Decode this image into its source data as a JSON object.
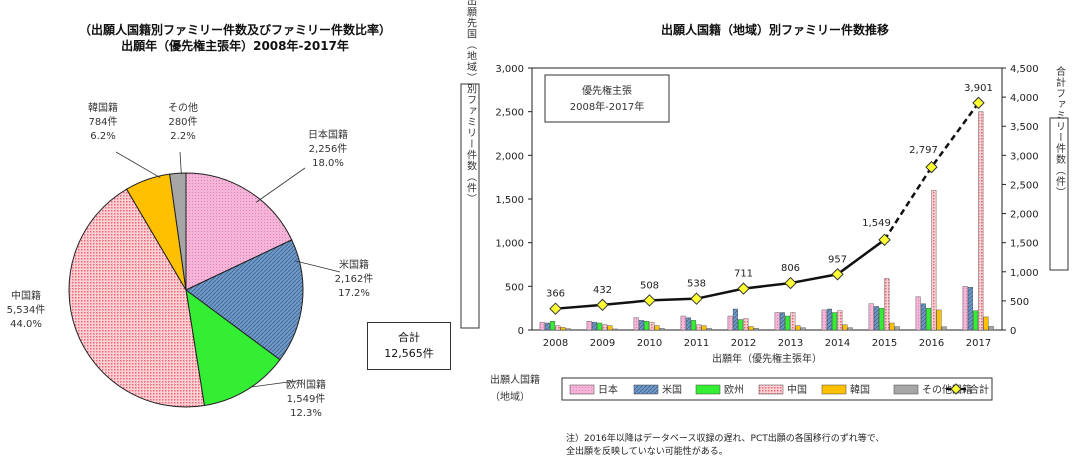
{
  "left_title": {
    "line1": "（出願人国籍別ファミリー件数及びファミリー件数比率）",
    "line2": "出願年（優先権主張年）2008年-2017年"
  },
  "right_title": "出願人国籍（地域）別ファミリー件数推移",
  "note": {
    "line1": "注）2016年以降はデータベース収録の遅れ、PCT出願の各国移行のずれ等で、",
    "line2": "全出願を反映していない可能性がある。"
  },
  "chart_data": [
    {
      "type": "pie",
      "title": "（出願人国籍別ファミリー件数及びファミリー件数比率）出願年（優先権主張年）2008年-2017年",
      "slices": [
        {
          "name": "日本国籍",
          "count": "2,256件",
          "pct": "18.0%",
          "value": 2256,
          "color": "#f5b5d8"
        },
        {
          "name": "米国籍",
          "count": "2,162件",
          "pct": "17.2%",
          "value": 2162,
          "color": "#7096c4"
        },
        {
          "name": "欧州国籍",
          "count": "1,549件",
          "pct": "12.3%",
          "value": 1549,
          "color": "#33ee33"
        },
        {
          "name": "中国籍",
          "count": "5,534件",
          "pct": "44.0%",
          "value": 5534,
          "color": "#f8b8bd"
        },
        {
          "name": "韓国籍",
          "count": "784件",
          "pct": "6.2%",
          "value": 784,
          "color": "#ffc000"
        },
        {
          "name": "その他",
          "count": "280件",
          "pct": "2.2%",
          "value": 280,
          "color": "#a6a6a6"
        }
      ],
      "total_label": "合計",
      "total_value": "12,565件"
    },
    {
      "type": "bar",
      "title": "出願人国籍（地域）別ファミリー件数推移",
      "categories": [
        "2008",
        "2009",
        "2010",
        "2011",
        "2012",
        "2013",
        "2014",
        "2015",
        "2016",
        "2017"
      ],
      "series": [
        {
          "name": "日本",
          "color": "#f5a3cf",
          "values": [
            90,
            100,
            140,
            160,
            160,
            200,
            230,
            300,
            380,
            500
          ]
        },
        {
          "name": "米国",
          "color": "#6f98c6",
          "values": [
            80,
            90,
            110,
            140,
            240,
            200,
            240,
            270,
            300,
            490
          ]
        },
        {
          "name": "欧州",
          "color": "#33ee33",
          "values": [
            100,
            80,
            100,
            110,
            120,
            160,
            200,
            250,
            250,
            220
          ]
        },
        {
          "name": "中国",
          "color": "#f7a9b0",
          "values": [
            50,
            60,
            90,
            60,
            130,
            200,
            220,
            590,
            1600,
            2500
          ]
        },
        {
          "name": "韓国",
          "color": "#ffc000",
          "values": [
            30,
            50,
            50,
            50,
            40,
            50,
            60,
            80,
            230,
            150
          ]
        },
        {
          "name": "その他国籍",
          "color": "#a6a6a6",
          "values": [
            16,
            12,
            18,
            18,
            21,
            26,
            27,
            39,
            37,
            41
          ]
        }
      ],
      "line": {
        "name": "合計",
        "values": [
          366,
          432,
          508,
          538,
          711,
          806,
          957,
          1549,
          2797,
          3901
        ],
        "labels": [
          "366",
          "432",
          "508",
          "538",
          "711",
          "806",
          "957",
          "1,549",
          "2,797",
          "3,901"
        ]
      },
      "ylim_left": [
        0,
        3000
      ],
      "left_ticks": [
        "0",
        "500",
        "1,000",
        "1,500",
        "2,000",
        "2,500",
        "3,000"
      ],
      "ylim_right": [
        0,
        4500
      ],
      "right_ticks": [
        "0",
        "500",
        "1,000",
        "1,500",
        "2,000",
        "2,500",
        "3,000",
        "3,500",
        "4,000",
        "4,500"
      ],
      "ylabel_left": "出願先国（地域）別ファミリー件数（件）",
      "ylabel_right": "合計ファミリー件数（件）",
      "xlabel": "出願年（優先権主張年）",
      "inset": {
        "line1": "優先権主張",
        "line2": "2008年-2017年"
      },
      "legend_title": {
        "line1": "出願人国籍",
        "line2": "（地域）"
      }
    }
  ]
}
